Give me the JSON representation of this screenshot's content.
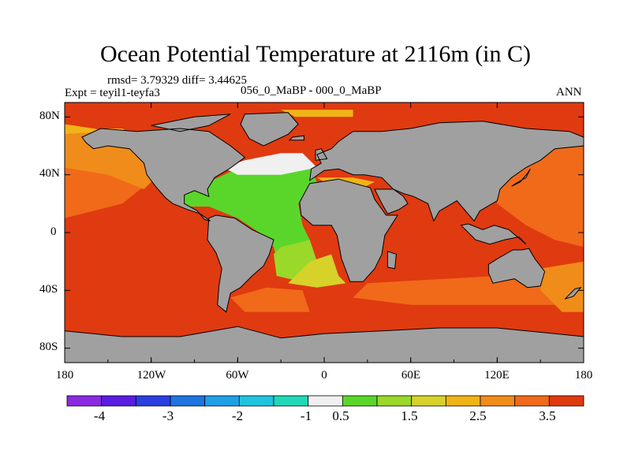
{
  "title": "Ocean Potential Temperature at 2116m (in C)",
  "stats": {
    "rmsd": "rmsd= 3.79329 diff= 3.44625",
    "experiment": "Expt = teyil1-teyfa3",
    "comparison": "056_0_MaBP - 000_0_MaBP",
    "season": "ANN"
  },
  "axes": {
    "lat_labels": [
      "80N",
      "40N",
      "0",
      "40S",
      "80S"
    ],
    "lat_values": [
      80,
      40,
      0,
      -40,
      -80
    ],
    "lon_labels": [
      "180",
      "120W",
      "60W",
      "0",
      "60E",
      "120E",
      "180"
    ],
    "lon_values": [
      -180,
      -120,
      -60,
      0,
      60,
      120,
      180
    ]
  },
  "colorbar": {
    "colors": [
      "#8a2be2",
      "#5a1ce0",
      "#2b3ee0",
      "#1e74e0",
      "#1ea0e6",
      "#20c4e0",
      "#20d8b8",
      "#f0f0f0",
      "#5ad62a",
      "#9ad82a",
      "#d6d22a",
      "#f0b418",
      "#f08c1a",
      "#f06a1a",
      "#e03a10"
    ],
    "labels": [
      "-4",
      "-3",
      "-2",
      "-1",
      "0.5",
      "1.5",
      "2.5",
      "3.5"
    ]
  },
  "fill_colors": {
    "land": "#a0a0a0",
    "ocean_warm": "#e03a10",
    "ocean_orange": "#f06a1a",
    "ocean_light_orange": "#f08c1a",
    "ocean_yellow": "#f0b418",
    "ocean_green": "#5ad62a",
    "ocean_light_green": "#9ad82a",
    "ocean_yellow_green": "#d6d22a",
    "ocean_white": "#f0f0f0"
  }
}
